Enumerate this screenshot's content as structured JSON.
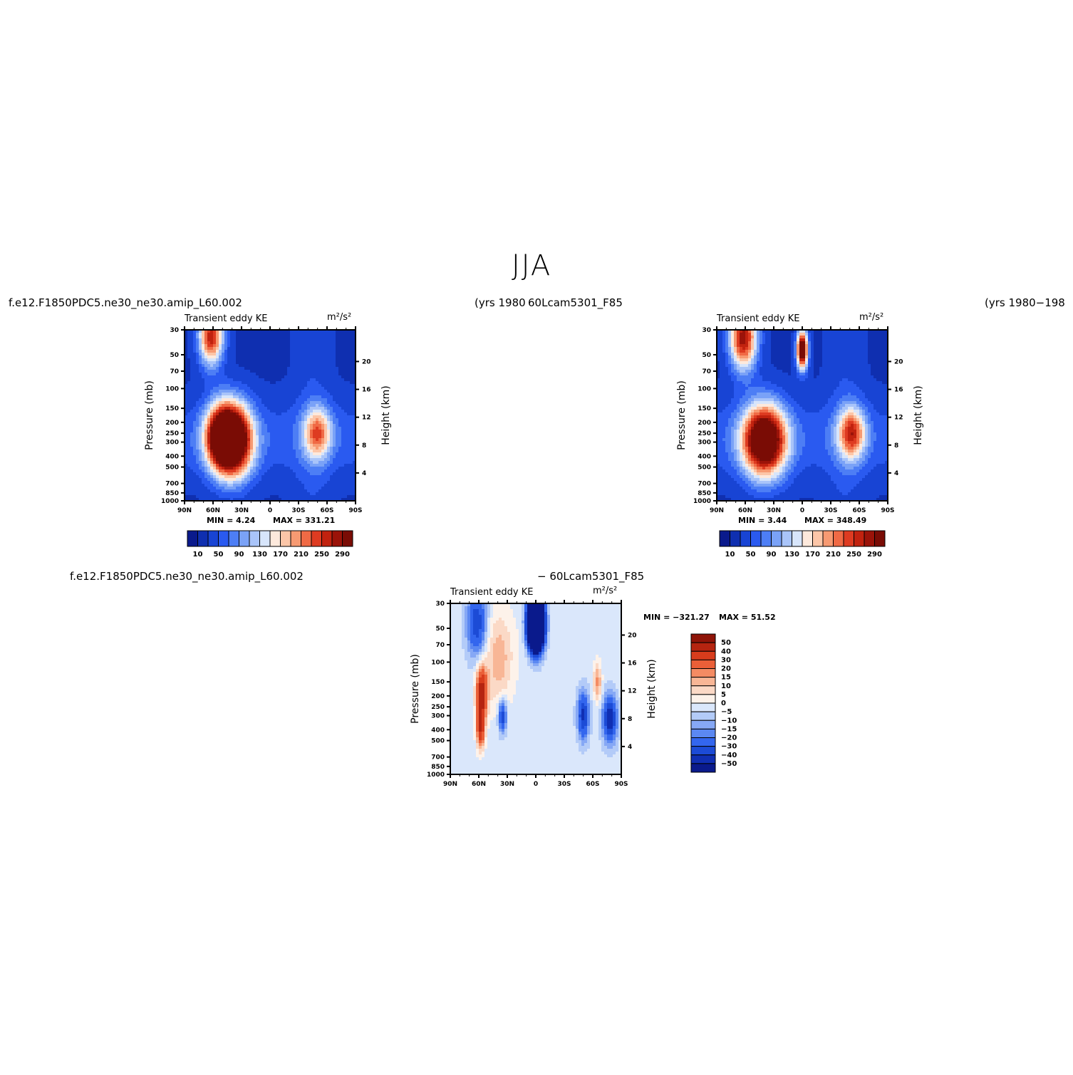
{
  "page": {
    "title": "JJA",
    "left_case": "f.e12.F1850PDC5.ne30_ne30.amip_L60.002",
    "left_years": "(yrs 1980",
    "right_case": "60Lcam5301_F85",
    "right_years": "(yrs 1980−198",
    "diff_case": "f.e12.F1850PDC5.ne30_ne30.amip_L60.002",
    "diff_case_right": "− 60Lcam5301_F85"
  },
  "colors": {
    "seq": [
      "#0a1a8c",
      "#0f2fb0",
      "#1844d4",
      "#2a5af0",
      "#4d7ef5",
      "#7aa2f7",
      "#a9c4f9",
      "#d7e5fb",
      "#fde9dc",
      "#fcc6a8",
      "#f79a72",
      "#f06a45",
      "#de3b21",
      "#c1220f",
      "#9b1309",
      "#7a0c05"
    ],
    "diff": [
      "#0a1a8c",
      "#102fb3",
      "#1c4bd6",
      "#3366ee",
      "#5b88f2",
      "#86a8f5",
      "#b3cbf8",
      "#dae7fb",
      "#fdf2ea",
      "#fbd9c6",
      "#f8b696",
      "#f48b63",
      "#ea5f38",
      "#d83c1c",
      "#b52410",
      "#8f1408"
    ]
  },
  "chart_data": [
    {
      "type": "heatmap",
      "title": "Transient eddy KE",
      "units": "m²/s²",
      "ylabel": "Pressure (mb)",
      "y2label": "Height (km)",
      "x_ticks": [
        "90N",
        "60N",
        "30N",
        "0",
        "30S",
        "60S",
        "90S"
      ],
      "y_ticks": [
        30,
        50,
        70,
        100,
        150,
        200,
        250,
        300,
        400,
        500,
        700,
        850,
        1000
      ],
      "y2_ticks": [
        20,
        16,
        12,
        8,
        4
      ],
      "ylim": [
        1000,
        30
      ],
      "yscale": "log",
      "min_label": "MIN =    4.24",
      "max_label": "MAX = 331.21",
      "min": 4.24,
      "max": 331.21,
      "colorbar_labels": [
        "10",
        "50",
        "90",
        "130",
        "170",
        "210",
        "250",
        "290"
      ],
      "levels": [
        10,
        30,
        50,
        70,
        90,
        110,
        130,
        150,
        170,
        190,
        210,
        230,
        250,
        270,
        290
      ],
      "blobs": [
        {
          "lat": 38,
          "p": 290,
          "amp": 330,
          "rx": 14,
          "rlog": 0.22
        },
        {
          "lat": 52,
          "p": 270,
          "amp": 240,
          "rx": 12,
          "rlog": 0.2
        },
        {
          "lat": 62,
          "p": 34,
          "amp": 240,
          "rx": 9,
          "rlog": 0.18
        },
        {
          "lat": -50,
          "p": 250,
          "amp": 165,
          "rx": 10,
          "rlog": 0.16
        }
      ]
    },
    {
      "type": "heatmap",
      "title": "Transient eddy KE",
      "units": "m²/s²",
      "ylabel": "Pressure (mb)",
      "y2label": "Height (km)",
      "x_ticks": [
        "90N",
        "60N",
        "30N",
        "0",
        "30S",
        "60S",
        "90S"
      ],
      "y_ticks": [
        30,
        50,
        70,
        100,
        150,
        200,
        250,
        300,
        400,
        500,
        700,
        850,
        1000
      ],
      "y2_ticks": [
        20,
        16,
        12,
        8,
        4
      ],
      "ylim": [
        1000,
        30
      ],
      "yscale": "log",
      "min_label": "MIN =    3.44",
      "max_label": "MAX = 348.49",
      "min": 3.44,
      "max": 348.49,
      "colorbar_labels": [
        "10",
        "50",
        "90",
        "130",
        "170",
        "210",
        "250",
        "290"
      ],
      "levels": [
        10,
        30,
        50,
        70,
        90,
        110,
        130,
        150,
        170,
        190,
        210,
        230,
        250,
        270,
        290
      ],
      "blobs": [
        {
          "lat": 40,
          "p": 290,
          "amp": 348,
          "rx": 16,
          "rlog": 0.22
        },
        {
          "lat": 62,
          "p": 35,
          "amp": 260,
          "rx": 10,
          "rlog": 0.2
        },
        {
          "lat": 0,
          "p": 45,
          "amp": 330,
          "rx": 4,
          "rlog": 0.12
        },
        {
          "lat": -52,
          "p": 250,
          "amp": 195,
          "rx": 10,
          "rlog": 0.16
        }
      ]
    },
    {
      "type": "heatmap",
      "title": "Transient eddy KE",
      "units": "m²/s²",
      "ylabel": "Pressure (mb)",
      "y2label": "Height (km)",
      "x_ticks": [
        "90N",
        "60N",
        "30N",
        "0",
        "30S",
        "60S",
        "90S"
      ],
      "y_ticks": [
        30,
        50,
        70,
        100,
        150,
        200,
        250,
        300,
        400,
        500,
        700,
        850,
        1000
      ],
      "y2_ticks": [
        20,
        16,
        12,
        8,
        4
      ],
      "ylim": [
        1000,
        30
      ],
      "yscale": "log",
      "min_label": "MIN = −321.27",
      "max_label": "MAX =   51.52",
      "min": -321.27,
      "max": 51.52,
      "colorbar_labels": [
        "50",
        "40",
        "30",
        "20",
        "15",
        "10",
        "5",
        "0",
        "−5",
        "−10",
        "−15",
        "−20",
        "−30",
        "−40",
        "−50"
      ],
      "levels": [
        -50,
        -40,
        -30,
        -20,
        -15,
        -10,
        -5,
        0,
        5,
        10,
        15,
        20,
        30,
        40,
        50
      ],
      "blobs": [
        {
          "lat": 0,
          "p": 45,
          "amp": -320,
          "rx": 5,
          "rlog": 0.14
        },
        {
          "lat": 57,
          "p": 190,
          "amp": 52,
          "rx": 4,
          "rlog": 0.16
        },
        {
          "lat": 58,
          "p": 400,
          "amp": 40,
          "rx": 3,
          "rlog": 0.12
        },
        {
          "lat": 62,
          "p": 45,
          "amp": -35,
          "rx": 7,
          "rlog": 0.2
        },
        {
          "lat": -78,
          "p": 320,
          "amp": -45,
          "rx": 5,
          "rlog": 0.14
        },
        {
          "lat": -50,
          "p": 300,
          "amp": -40,
          "rx": 4,
          "rlog": 0.14
        },
        {
          "lat": 35,
          "p": 300,
          "amp": -35,
          "rx": 3,
          "rlog": 0.1
        },
        {
          "lat": -65,
          "p": 150,
          "amp": 20,
          "rx": 3,
          "rlog": 0.12
        },
        {
          "lat": 40,
          "p": 100,
          "amp": 12,
          "rx": 10,
          "rlog": 0.3
        }
      ]
    }
  ]
}
